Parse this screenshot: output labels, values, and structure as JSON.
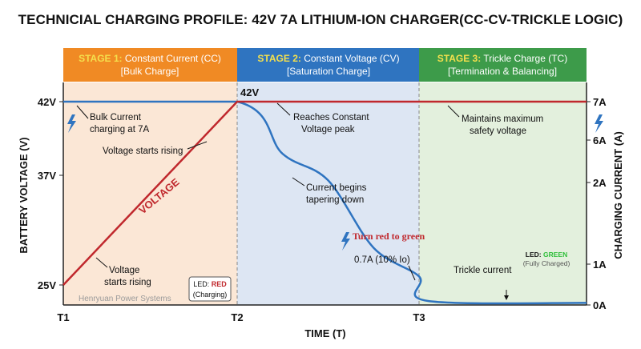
{
  "title": "TECHNICIAL CHARGING PROFILE: 42V 7A LITHIUM-ION CHARGER(CC-CV-TRICKLE LOGIC)",
  "stages": [
    {
      "label_strong": "STAGE 1:",
      "label": " Constant Current (CC)",
      "sub": "[Bulk Charge]",
      "color": "#f08a24",
      "bg": "#fbe7d6"
    },
    {
      "label_strong": "STAGE 2:",
      "label": " Constant Voltage (CV)",
      "sub": "[Saturation Charge]",
      "color": "#2f74c0",
      "bg": "#dde6f3"
    },
    {
      "label_strong": "STAGE 3:",
      "label": " Trickle Charge (TC)",
      "sub": "[Termination & Balancing]",
      "color": "#3d9b4a",
      "bg": "#e3f0dd"
    }
  ],
  "chart_data": {
    "type": "line",
    "x_ticks": [
      "T1",
      "T2",
      "T3"
    ],
    "xlabel": "TIME (T)",
    "ylabel_left": "BATTERY VOLTAGE (V)",
    "ylabel_right": "CHARGING CURRENT (A)",
    "y_left_ticks": [
      "42V",
      "37V",
      "25V"
    ],
    "y_right_ticks": [
      "7A",
      "6A",
      "2A",
      "1A",
      "0A"
    ],
    "series": [
      {
        "name": "VOLTAGE",
        "axis": "left",
        "color": "#c0282d",
        "points": [
          [
            "T1",
            25
          ],
          [
            "T2",
            42
          ],
          [
            "T3",
            42
          ],
          [
            "end",
            42
          ]
        ]
      },
      {
        "axis": "right",
        "color": "#2f74c0",
        "points": [
          [
            "T1",
            7
          ],
          [
            "T2",
            7
          ],
          [
            "T2+0.25",
            4.7
          ],
          [
            "T2+0.5",
            2.2
          ],
          [
            "T2+0.75",
            1.2
          ],
          [
            "T3",
            0.7
          ],
          [
            "T3+0.05",
            0.1
          ],
          [
            "end",
            0.05
          ]
        ]
      }
    ],
    "peak_label": "42V",
    "annotations": {
      "bulk_current": [
        "Bulk Current",
        "charging at 7A"
      ],
      "voltage_rising_top": "Voltage starts rising",
      "voltage_rising_bottom": [
        "Voltage",
        "starts rising"
      ],
      "reaches_peak": [
        "Reaches Constant",
        "Voltage peak"
      ],
      "current_tapering": [
        "Current begins",
        "tapering down"
      ],
      "turn_red_green": "Turn red to green",
      "cutoff": "0.7A (10% Io)",
      "trickle": "Trickle current",
      "maintains": [
        "Maintains maximum",
        "safety voltage"
      ],
      "led_red_prefix": "LED: ",
      "led_red_value": "RED",
      "led_red_state": "(Charging)",
      "led_green_prefix": "LED: ",
      "led_green_value": "GREEN",
      "led_green_state": "(Fully Charged)",
      "watermark": "Henryuan Power Systems"
    },
    "colors": {
      "voltage": "#c0282d",
      "current": "#2f74c0",
      "bolt": "#2f74c0",
      "grid_dash": "#888888"
    }
  }
}
